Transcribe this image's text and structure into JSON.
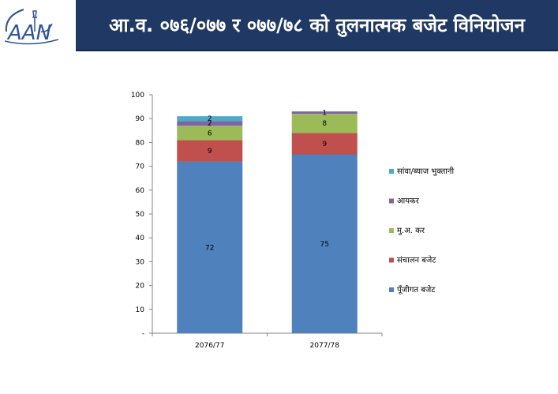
{
  "header": {
    "title": "आ.व. ०७६/०७७ र ०७७/७८ को तुलनात्मक बजेट विनियोजन",
    "logo_text": "AAN"
  },
  "colors": {
    "title_bg": "#1f3864",
    "logo": "#2f5597"
  },
  "chart_data": {
    "type": "bar",
    "stacked": true,
    "categories": [
      "2076/77",
      "2077/78"
    ],
    "series": [
      {
        "name": "पूँजीगत बजेट",
        "values": [
          72,
          75
        ],
        "color": "#4f81bd"
      },
      {
        "name": "संचालन बजेट",
        "values": [
          9,
          9
        ],
        "color": "#c0504d"
      },
      {
        "name": "मु.अ. कर",
        "values": [
          6,
          8
        ],
        "color": "#9bbb59"
      },
      {
        "name": "आयकर",
        "values": [
          2,
          1
        ],
        "color": "#8064a2"
      },
      {
        "name": "सांवा/ब्याज भुक्तानी",
        "values": [
          2,
          0
        ],
        "color": "#4bacc6"
      }
    ],
    "yticks": [
      "-",
      "10",
      "20",
      "30",
      "40",
      "50",
      "60",
      "70",
      "80",
      "90",
      "100"
    ],
    "ylim": [
      0,
      100
    ],
    "legend_position": "right",
    "grid": false
  }
}
